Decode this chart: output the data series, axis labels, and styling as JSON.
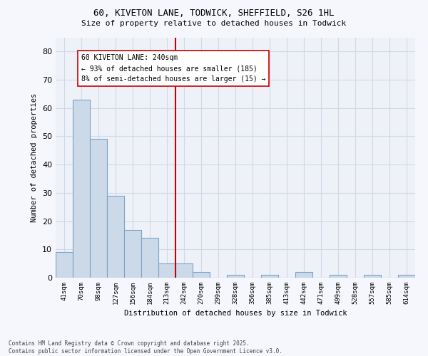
{
  "title1": "60, KIVETON LANE, TODWICK, SHEFFIELD, S26 1HL",
  "title2": "Size of property relative to detached houses in Todwick",
  "xlabel": "Distribution of detached houses by size in Todwick",
  "ylabel": "Number of detached properties",
  "categories": [
    "41sqm",
    "70sqm",
    "98sqm",
    "127sqm",
    "156sqm",
    "184sqm",
    "213sqm",
    "242sqm",
    "270sqm",
    "299sqm",
    "328sqm",
    "356sqm",
    "385sqm",
    "413sqm",
    "442sqm",
    "471sqm",
    "499sqm",
    "528sqm",
    "557sqm",
    "585sqm",
    "614sqm"
  ],
  "values": [
    9,
    63,
    49,
    29,
    17,
    14,
    5,
    5,
    2,
    0,
    1,
    0,
    1,
    0,
    2,
    0,
    1,
    0,
    1,
    0,
    1
  ],
  "bar_color": "#ccd9e8",
  "bar_edge_color": "#7ba3c8",
  "vline_index": 7,
  "vline_color": "#cc0000",
  "annotation_text": "60 KIVETON LANE: 240sqm\n← 93% of detached houses are smaller (185)\n8% of semi-detached houses are larger (15) →",
  "annotation_box_color": "#ffffff",
  "annotation_edge_color": "#cc0000",
  "ylim": [
    0,
    85
  ],
  "yticks": [
    0,
    10,
    20,
    30,
    40,
    50,
    60,
    70,
    80
  ],
  "grid_color": "#d0d8e8",
  "bg_color": "#eef1f8",
  "fig_bg_color": "#f5f7fc",
  "footer": "Contains HM Land Registry data © Crown copyright and database right 2025.\nContains public sector information licensed under the Open Government Licence v3.0."
}
